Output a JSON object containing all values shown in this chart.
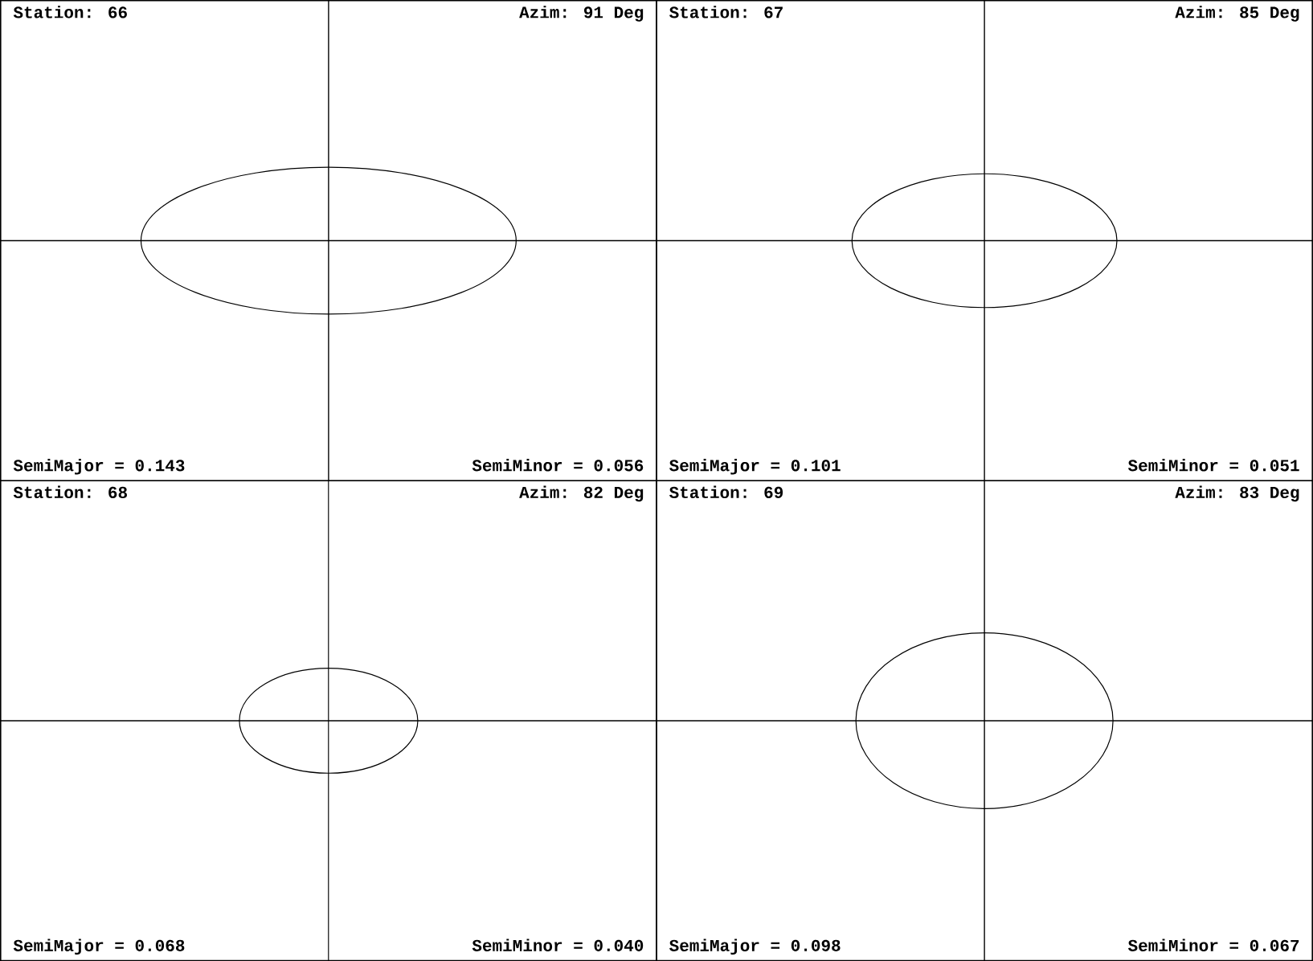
{
  "chart_data": [
    {
      "type": "other",
      "title": "Station: 66",
      "annotations": [
        "Azim: 91 Deg"
      ],
      "categories": [
        "SemiMajor =",
        "SemiMinor ="
      ],
      "values": [
        0.143,
        0.056
      ],
      "value_labels": [
        "0.143",
        "0.056"
      ]
    },
    {
      "type": "other",
      "title": "Station: 67",
      "annotations": [
        "Azim: 85 Deg"
      ],
      "categories": [
        "SemiMajor =",
        "SemiMinor ="
      ],
      "values": [
        0.101,
        0.051
      ],
      "value_labels": [
        "0.101",
        "0.051"
      ]
    },
    {
      "type": "other",
      "title": "Station: 68",
      "annotations": [
        "Azim: 82 Deg"
      ],
      "categories": [
        "SemiMajor =",
        "SemiMinor ="
      ],
      "values": [
        0.068,
        0.04
      ],
      "value_labels": [
        "0.068",
        "0.040"
      ]
    },
    {
      "type": "other",
      "title": "Station: 69",
      "annotations": [
        "Azim: 83 Deg"
      ],
      "categories": [
        "SemiMajor =",
        "SemiMinor ="
      ],
      "values": [
        0.098,
        0.067
      ],
      "value_labels": [
        "0.098",
        "0.067"
      ]
    }
  ]
}
